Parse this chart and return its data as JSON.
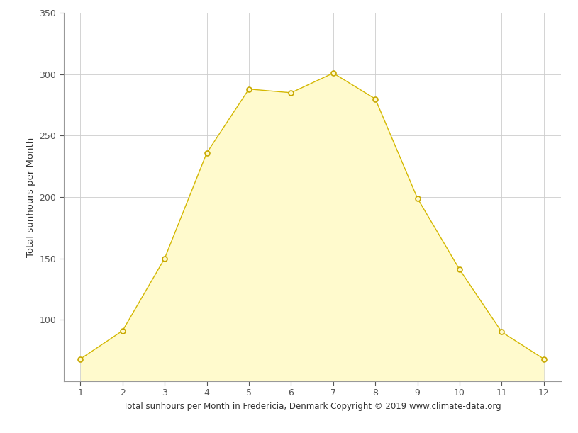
{
  "months": [
    1,
    2,
    3,
    4,
    5,
    6,
    7,
    8,
    9,
    10,
    11,
    12
  ],
  "sunhours": [
    68,
    91,
    150,
    236,
    288,
    285,
    301,
    280,
    199,
    141,
    90,
    68
  ],
  "fill_color": "#FFFACD",
  "line_color": "#D4B800",
  "marker_facecolor": "#FFFACD",
  "marker_edgecolor": "#C8A800",
  "xlabel": "Total sunhours per Month in Fredericia, Denmark Copyright © 2019 www.climate-data.org",
  "ylabel": "Total sunhours per Month",
  "xlim": [
    0.6,
    12.4
  ],
  "ylim": [
    50,
    350
  ],
  "yticks": [
    100,
    150,
    200,
    250,
    300,
    350
  ],
  "xticks": [
    1,
    2,
    3,
    4,
    5,
    6,
    7,
    8,
    9,
    10,
    11,
    12
  ],
  "background_color": "#ffffff",
  "grid_color": "#cccccc",
  "spine_color": "#999999",
  "xlabel_fontsize": 8.5,
  "ylabel_fontsize": 9.5,
  "tick_fontsize": 9,
  "figsize": [
    8.15,
    6.11
  ],
  "dpi": 100
}
